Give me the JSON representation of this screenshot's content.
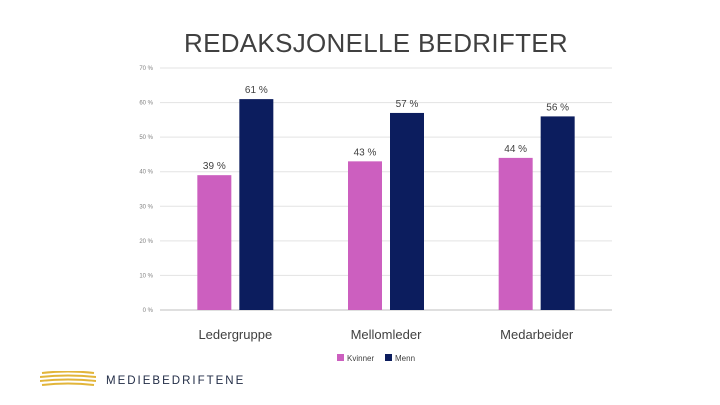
{
  "chart_data": {
    "type": "bar",
    "title": "REDAKSJONELLE BEDRIFTER",
    "categories": [
      "Ledergruppe",
      "Mellomleder",
      "Medarbeider"
    ],
    "series": [
      {
        "name": "Kvinner",
        "values": [
          39,
          43,
          44
        ],
        "color": "#cc5fbf"
      },
      {
        "name": "Menn",
        "values": [
          61,
          57,
          56
        ],
        "color": "#0c1d5e"
      }
    ],
    "value_labels": [
      [
        "39 %",
        "43 %",
        "44 %"
      ],
      [
        "61 %",
        "57 %",
        "56 %"
      ]
    ],
    "ylim": [
      0,
      70
    ],
    "yticks": [
      0,
      10,
      20,
      30,
      40,
      50,
      60,
      70
    ],
    "ytick_labels": [
      "0 %",
      "10 %",
      "20 %",
      "30 %",
      "40 %",
      "50 %",
      "60 %",
      "70 %"
    ],
    "grid": true,
    "legend_position": "bottom"
  },
  "footer": {
    "brand": "MEDIEBEDRIFTENE",
    "logo_icon": "gold-stripes-logo",
    "logo_color": "#e2b53a"
  }
}
